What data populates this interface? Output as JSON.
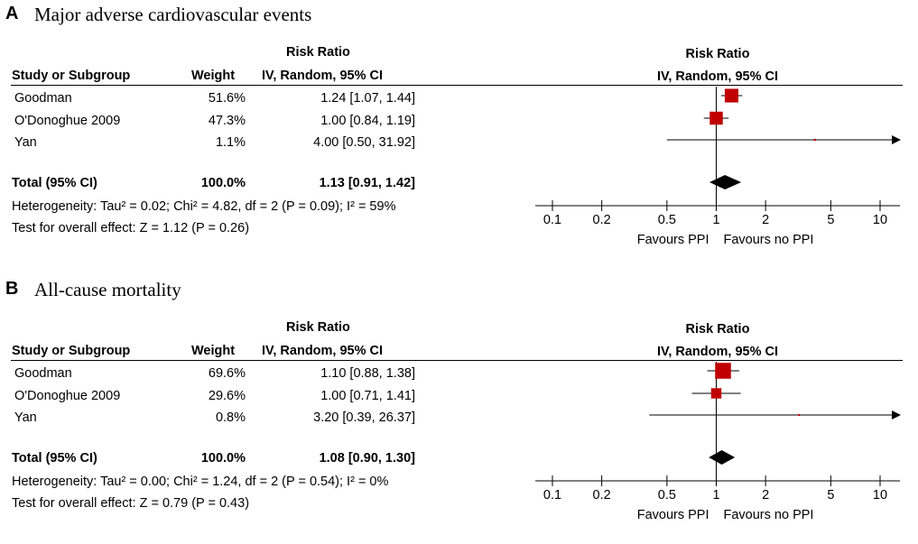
{
  "panels": [
    {
      "letter": "A",
      "title": "Major adverse cardiovascular events",
      "header": {
        "group_label": "Risk Ratio",
        "study_col": "Study or Subgroup",
        "weight_col": "Weight",
        "ci_col": "IV, Random, 95% CI",
        "plot_label": "Risk Ratio",
        "plot_ci_label": "IV, Random, 95% CI"
      },
      "studies": [
        {
          "name": "Goodman",
          "weight": "51.6%",
          "ci_text": "1.24 [1.07, 1.44]"
        },
        {
          "name": "O'Donoghue 2009",
          "weight": "47.3%",
          "ci_text": "1.00 [0.84, 1.19]"
        },
        {
          "name": "Yan",
          "weight": "1.1%",
          "ci_text": "4.00 [0.50, 31.92]"
        }
      ],
      "total": {
        "label": "Total (95% CI)",
        "weight": "100.0%",
        "ci_text": "1.13 [0.91, 1.42]"
      },
      "heterogeneity": "Heterogeneity: Tau² = 0.02; Chi² = 4.82, df = 2 (P = 0.09); I² = 59%",
      "overall_effect": "Test for overall effect: Z = 1.12 (P = 0.26)",
      "favours_left": "Favours PPI",
      "favours_right": "Favours no PPI"
    },
    {
      "letter": "B",
      "title": "All-cause mortality",
      "header": {
        "group_label": "Risk Ratio",
        "study_col": "Study or Subgroup",
        "weight_col": "Weight",
        "ci_col": "IV, Random, 95% CI",
        "plot_label": "Risk Ratio",
        "plot_ci_label": "IV, Random, 95% CI"
      },
      "studies": [
        {
          "name": "Goodman",
          "weight": "69.6%",
          "ci_text": "1.10 [0.88, 1.38]"
        },
        {
          "name": "O'Donoghue 2009",
          "weight": "29.6%",
          "ci_text": "1.00 [0.71, 1.41]"
        },
        {
          "name": "Yan",
          "weight": "0.8%",
          "ci_text": "3.20 [0.39, 26.37]"
        }
      ],
      "total": {
        "label": "Total (95% CI)",
        "weight": "100.0%",
        "ci_text": "1.08 [0.90, 1.30]"
      },
      "heterogeneity": "Heterogeneity: Tau² = 0.00; Chi² = 1.24, df = 2 (P = 0.54); I² = 0%",
      "overall_effect": "Test for overall effect: Z = 0.79 (P = 0.43)",
      "favours_left": "Favours PPI",
      "favours_right": "Favours no PPI"
    }
  ],
  "chart_data": [
    {
      "type": "forest",
      "title": "Major adverse cardiovascular events",
      "scale": "log",
      "xlim": [
        0.1,
        10
      ],
      "ticks": [
        0.1,
        0.2,
        0.5,
        1,
        2,
        5,
        10
      ],
      "tick_labels": [
        "0.1",
        "0.2",
        "0.5",
        "1",
        "2",
        "5",
        "10"
      ],
      "studies": [
        {
          "name": "Goodman",
          "weight": 51.6,
          "rr": 1.24,
          "lo": 1.07,
          "hi": 1.44
        },
        {
          "name": "O'Donoghue 2009",
          "weight": 47.3,
          "rr": 1.0,
          "lo": 0.84,
          "hi": 1.19
        },
        {
          "name": "Yan",
          "weight": 1.1,
          "rr": 4.0,
          "lo": 0.5,
          "hi": 31.92
        }
      ],
      "pooled": {
        "rr": 1.13,
        "lo": 0.91,
        "hi": 1.42
      },
      "marker_color": "#c00000",
      "diamond_color": "#000000"
    },
    {
      "type": "forest",
      "title": "All-cause mortality",
      "scale": "log",
      "xlim": [
        0.1,
        10
      ],
      "ticks": [
        0.1,
        0.2,
        0.5,
        1,
        2,
        5,
        10
      ],
      "tick_labels": [
        "0.1",
        "0.2",
        "0.5",
        "1",
        "2",
        "5",
        "10"
      ],
      "studies": [
        {
          "name": "Goodman",
          "weight": 69.6,
          "rr": 1.1,
          "lo": 0.88,
          "hi": 1.38
        },
        {
          "name": "O'Donoghue 2009",
          "weight": 29.6,
          "rr": 1.0,
          "lo": 0.71,
          "hi": 1.41
        },
        {
          "name": "Yan",
          "weight": 0.8,
          "rr": 3.2,
          "lo": 0.39,
          "hi": 26.37
        }
      ],
      "pooled": {
        "rr": 1.08,
        "lo": 0.9,
        "hi": 1.3
      },
      "marker_color": "#c00000",
      "diamond_color": "#000000"
    }
  ]
}
